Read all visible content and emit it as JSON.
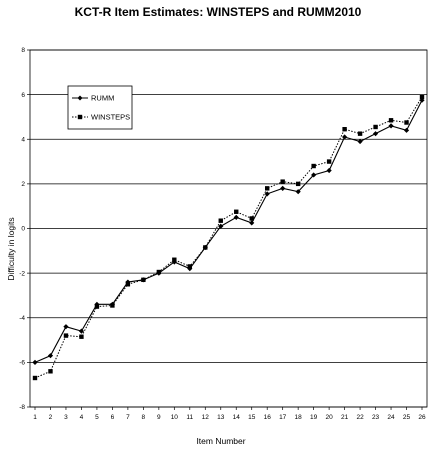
{
  "chart_data": {
    "type": "line",
    "title": "KCT-R Item Estimates:  WINSTEPS and RUMM2010",
    "xlabel": "Item Number",
    "ylabel": "Difficulty in logits",
    "x": [
      1,
      2,
      3,
      4,
      5,
      6,
      7,
      8,
      9,
      10,
      11,
      12,
      13,
      14,
      15,
      16,
      17,
      18,
      19,
      20,
      21,
      22,
      23,
      24,
      25,
      26
    ],
    "ylim": [
      -8,
      8
    ],
    "yticks": [
      -8,
      -6,
      -4,
      -2,
      0,
      2,
      4,
      6,
      8
    ],
    "grid": "horizontal",
    "legend_position": "top-left",
    "series": [
      {
        "name": "RUMM",
        "values": [
          -6.0,
          -5.7,
          -4.4,
          -4.6,
          -3.4,
          -3.4,
          -2.4,
          -2.3,
          -2.0,
          -1.5,
          -1.8,
          -0.85,
          0.1,
          0.5,
          0.25,
          1.55,
          1.8,
          1.65,
          2.4,
          2.6,
          4.1,
          3.9,
          4.25,
          4.6,
          4.4,
          5.75
        ],
        "line_style": "solid",
        "marker": "diamond",
        "color": "#000000"
      },
      {
        "name": "WINSTEPS",
        "values": [
          -6.7,
          -6.4,
          -4.8,
          -4.85,
          -3.5,
          -3.45,
          -2.5,
          -2.3,
          -1.95,
          -1.4,
          -1.7,
          -0.85,
          0.35,
          0.75,
          0.45,
          1.8,
          2.1,
          2.0,
          2.8,
          3.0,
          4.45,
          4.25,
          4.55,
          4.85,
          4.75,
          5.9
        ],
        "line_style": "dotted",
        "marker": "square",
        "color": "#000000"
      }
    ]
  }
}
